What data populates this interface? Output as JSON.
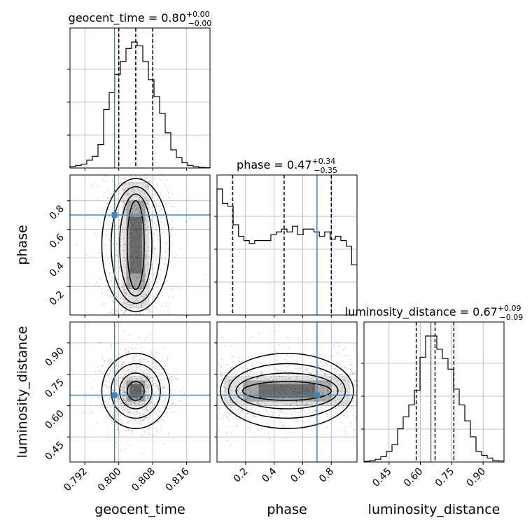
{
  "chart_data": {
    "type": "corner",
    "parameters": [
      "geocent_time",
      "phase",
      "luminosity_distance"
    ],
    "titles": {
      "geocent_time": {
        "name": "geocent_time",
        "value": "0.80",
        "plus": "+0.00",
        "minus": "−0.00"
      },
      "phase": {
        "name": "phase",
        "value": "0.47",
        "plus": "+0.34",
        "minus": "−0.35"
      },
      "luminosity_distance": {
        "name": "luminosity_distance",
        "value": "0.67",
        "plus": "+0.09",
        "minus": "−0.09"
      }
    },
    "ranges": {
      "geocent_time": [
        0.7885,
        0.8215
      ],
      "phase": [
        0.0,
        0.98
      ],
      "luminosity_distance": [
        0.33,
        1.0
      ]
    },
    "ticks": {
      "geocent_time": {
        "values": [
          0.792,
          0.8,
          0.808,
          0.816
        ],
        "labels": [
          "0.792",
          "0.800",
          "0.808",
          "0.816"
        ]
      },
      "phase": {
        "values": [
          0.2,
          0.4,
          0.6,
          0.8
        ],
        "labels": [
          "0.2",
          "0.4",
          "0.6",
          "0.8"
        ]
      },
      "luminosity_distance": {
        "values": [
          0.45,
          0.6,
          0.75,
          0.9
        ],
        "labels": [
          "0.45",
          "0.60",
          "0.75",
          "0.90"
        ]
      }
    },
    "truths": {
      "geocent_time": 0.799,
      "phase": 0.7,
      "luminosity_distance": 0.65
    },
    "quantiles": {
      "geocent_time": [
        0.8,
        0.804,
        0.808
      ],
      "phase": [
        0.11,
        0.47,
        0.8
      ],
      "luminosity_distance": [
        0.58,
        0.67,
        0.76
      ]
    },
    "histograms": {
      "geocent_time": [
        0.01,
        0.02,
        0.03,
        0.06,
        0.09,
        0.18,
        0.45,
        0.58,
        0.72,
        0.82,
        0.92,
        0.97,
        0.94,
        0.82,
        0.68,
        0.55,
        0.42,
        0.27,
        0.14,
        0.08,
        0.04,
        0.02,
        0.01,
        0.005,
        0.003
      ],
      "phase": [
        0.88,
        0.78,
        0.76,
        0.63,
        0.55,
        0.52,
        0.5,
        0.52,
        0.52,
        0.52,
        0.56,
        0.58,
        0.6,
        0.58,
        0.62,
        0.56,
        0.6,
        0.6,
        0.58,
        0.55,
        0.58,
        0.53,
        0.55,
        0.52,
        0.48,
        0.35
      ],
      "luminosity_distance": [
        0.005,
        0.01,
        0.02,
        0.04,
        0.08,
        0.13,
        0.25,
        0.34,
        0.43,
        0.54,
        0.79,
        0.95,
        0.95,
        0.85,
        0.78,
        0.7,
        0.55,
        0.43,
        0.31,
        0.19,
        0.08,
        0.05,
        0.03,
        0.01,
        0.008
      ]
    },
    "grid": true
  }
}
